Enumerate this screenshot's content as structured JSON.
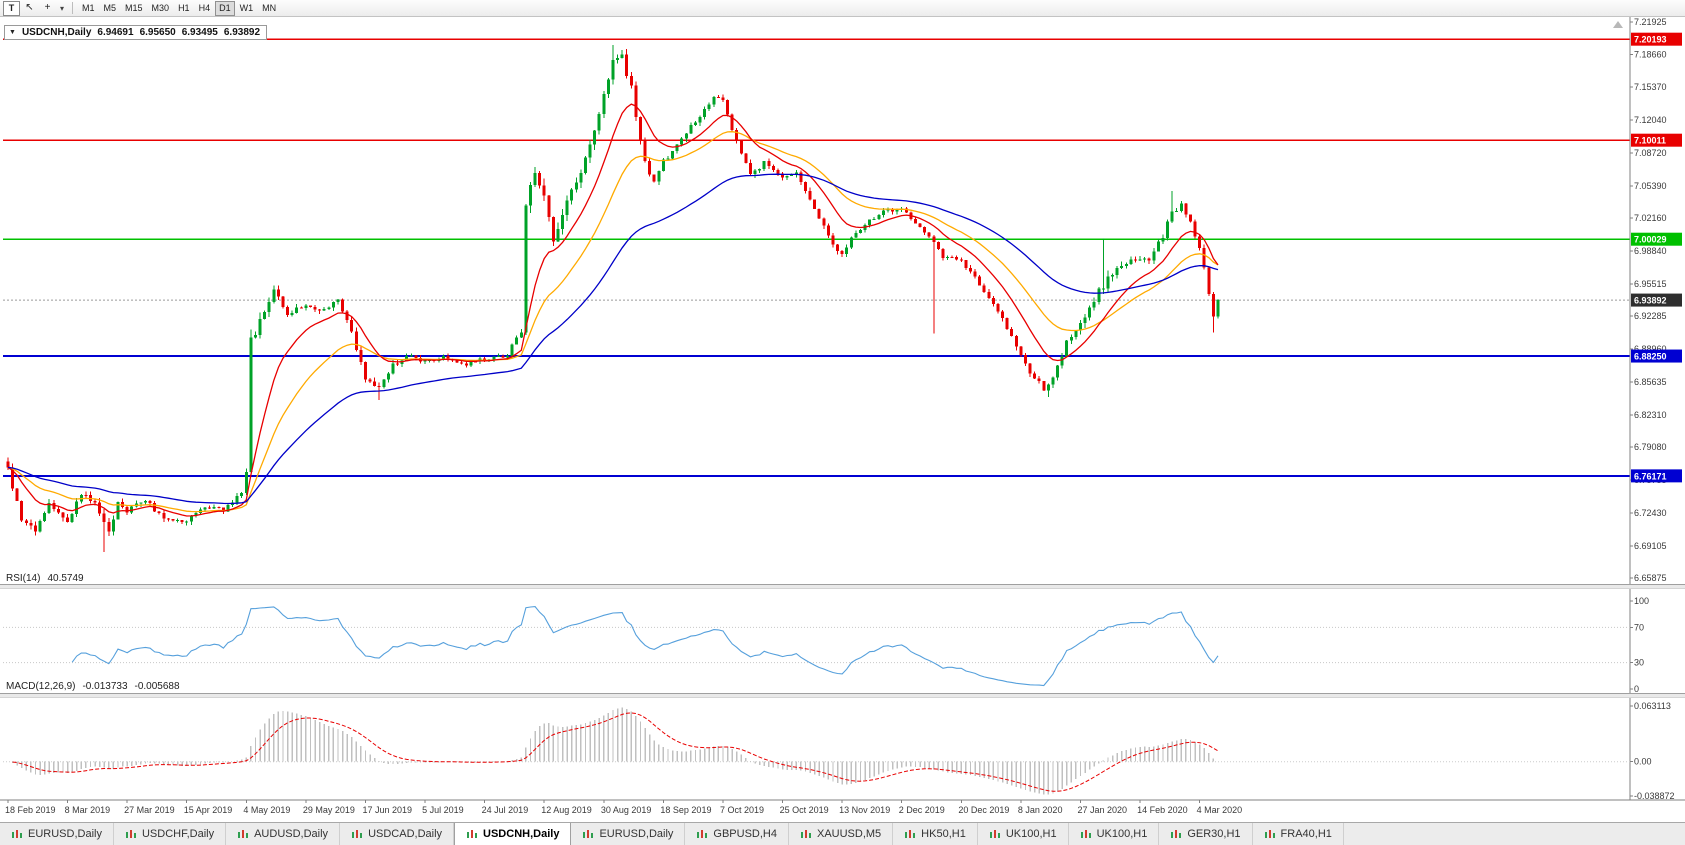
{
  "toolbar": {
    "text_tool_label": "T",
    "cursor_icon": "↖",
    "crosshair_icon": "+",
    "dropdown_icon": "▾",
    "timeframes": [
      "M1",
      "M5",
      "M15",
      "M30",
      "H1",
      "H4",
      "D1",
      "W1",
      "MN"
    ],
    "active_timeframe": "D1"
  },
  "chart": {
    "collapse_icon": "▼",
    "symbol": "USDCNH,Daily",
    "ohlc": {
      "open": "6.94691",
      "high": "6.95650",
      "low": "6.93495",
      "close": "6.93892"
    }
  },
  "chart_data": {
    "type": "candlestick",
    "symbol": "USDCNH",
    "timeframe": "Daily",
    "ylim": [
      6.65875,
      7.21925
    ],
    "y_ticks": [
      "7.21925",
      "7.18660",
      "7.15370",
      "7.12040",
      "7.08720",
      "7.05390",
      "7.02160",
      "6.98840",
      "6.95515",
      "6.92285",
      "6.88960",
      "6.85635",
      "6.82310",
      "6.79080",
      "6.75755",
      "6.72430",
      "6.69105",
      "6.65875"
    ],
    "x_labels": [
      "18 Feb 2019",
      "8 Mar 2019",
      "27 Mar 2019",
      "15 Apr 2019",
      "4 May 2019",
      "29 May 2019",
      "17 Jun 2019",
      "5 Jul 2019",
      "24 Jul 2019",
      "12 Aug 2019",
      "30 Aug 2019",
      "18 Sep 2019",
      "7 Oct 2019",
      "25 Oct 2019",
      "13 Nov 2019",
      "2 Dec 2019",
      "20 Dec 2019",
      "8 Jan 2020",
      "27 Jan 2020",
      "14 Feb 2020",
      "4 Mar 2020"
    ],
    "bars": 265,
    "bars_per_label": 13,
    "last_close": 6.93892,
    "anchors": [
      [
        0,
        6.768,
        0.007
      ],
      [
        3,
        6.716,
        0.008
      ],
      [
        6,
        6.706,
        0.007
      ],
      [
        9,
        6.735,
        0.006
      ],
      [
        13,
        6.712,
        0.007
      ],
      [
        16,
        6.744,
        0.006
      ],
      [
        19,
        6.732,
        0.006
      ],
      [
        22,
        6.703,
        0.008
      ],
      [
        24,
        6.736,
        0.005
      ],
      [
        26,
        6.726,
        0.005
      ],
      [
        30,
        6.737,
        0.005
      ],
      [
        34,
        6.718,
        0.005
      ],
      [
        39,
        6.717,
        0.005
      ],
      [
        43,
        6.731,
        0.004
      ],
      [
        47,
        6.728,
        0.004
      ],
      [
        51,
        6.744,
        0.004
      ],
      [
        52,
        6.765,
        0.006
      ],
      [
        53,
        6.9,
        0.012
      ],
      [
        55,
        6.916,
        0.01
      ],
      [
        58,
        6.947,
        0.008
      ],
      [
        61,
        6.925,
        0.006
      ],
      [
        65,
        6.934,
        0.006
      ],
      [
        69,
        6.929,
        0.005
      ],
      [
        72,
        6.941,
        0.006
      ],
      [
        75,
        6.905,
        0.006
      ],
      [
        78,
        6.862,
        0.007
      ],
      [
        81,
        6.849,
        0.006
      ],
      [
        84,
        6.872,
        0.006
      ],
      [
        88,
        6.884,
        0.005
      ],
      [
        91,
        6.876,
        0.004
      ],
      [
        95,
        6.882,
        0.004
      ],
      [
        99,
        6.874,
        0.004
      ],
      [
        104,
        6.879,
        0.004
      ],
      [
        109,
        6.884,
        0.004
      ],
      [
        112,
        6.908,
        0.006
      ],
      [
        113,
        7.038,
        0.016
      ],
      [
        115,
        7.062,
        0.012
      ],
      [
        117,
        7.046,
        0.012
      ],
      [
        119,
        6.998,
        0.01
      ],
      [
        121,
        7.028,
        0.009
      ],
      [
        124,
        7.058,
        0.008
      ],
      [
        127,
        7.093,
        0.008
      ],
      [
        130,
        7.148,
        0.009
      ],
      [
        132,
        7.178,
        0.008
      ],
      [
        134,
        7.183,
        0.008
      ],
      [
        136,
        7.152,
        0.008
      ],
      [
        139,
        7.078,
        0.009
      ],
      [
        141,
        7.056,
        0.007
      ],
      [
        143,
        7.079,
        0.006
      ],
      [
        146,
        7.094,
        0.006
      ],
      [
        149,
        7.114,
        0.006
      ],
      [
        152,
        7.129,
        0.005
      ],
      [
        154,
        7.146,
        0.005
      ],
      [
        156,
        7.139,
        0.005
      ],
      [
        159,
        7.099,
        0.006
      ],
      [
        162,
        7.066,
        0.006
      ],
      [
        165,
        7.077,
        0.005
      ],
      [
        169,
        7.062,
        0.005
      ],
      [
        172,
        7.069,
        0.004
      ],
      [
        175,
        7.041,
        0.005
      ],
      [
        178,
        7.014,
        0.005
      ],
      [
        180,
        6.996,
        0.006
      ],
      [
        182,
        6.986,
        0.005
      ],
      [
        185,
        7.008,
        0.004
      ],
      [
        188,
        7.019,
        0.004
      ],
      [
        191,
        7.028,
        0.004
      ],
      [
        195,
        7.032,
        0.004
      ],
      [
        198,
        7.016,
        0.004
      ],
      [
        201,
        7.002,
        0.004
      ],
      [
        204,
        6.983,
        0.004
      ],
      [
        208,
        6.978,
        0.004
      ],
      [
        211,
        6.962,
        0.004
      ],
      [
        214,
        6.941,
        0.005
      ],
      [
        217,
        6.921,
        0.005
      ],
      [
        220,
        6.891,
        0.006
      ],
      [
        223,
        6.863,
        0.006
      ],
      [
        226,
        6.851,
        0.006
      ],
      [
        228,
        6.859,
        0.007
      ],
      [
        231,
        6.897,
        0.007
      ],
      [
        234,
        6.917,
        0.007
      ],
      [
        237,
        6.939,
        0.008
      ],
      [
        240,
        6.961,
        0.009
      ],
      [
        243,
        6.972,
        0.007
      ],
      [
        246,
        6.981,
        0.006
      ],
      [
        249,
        6.979,
        0.005
      ],
      [
        252,
        7.004,
        0.006
      ],
      [
        254,
        7.027,
        0.006
      ],
      [
        256,
        7.034,
        0.005
      ],
      [
        258,
        7.017,
        0.005
      ],
      [
        260,
        6.994,
        0.006
      ],
      [
        261,
        6.974,
        0.005
      ],
      [
        262,
        6.947,
        0.005
      ],
      [
        263,
        6.922,
        0.005
      ],
      [
        264,
        6.93892,
        0.004
      ]
    ],
    "spikes": [
      {
        "index": 21,
        "low": 6.685
      },
      {
        "index": 81,
        "low": 6.838
      },
      {
        "index": 132,
        "high": 7.196
      },
      {
        "index": 202,
        "low": 6.905
      },
      {
        "index": 227,
        "low": 6.841
      },
      {
        "index": 239,
        "high": 7.001
      },
      {
        "index": 254,
        "high": 7.049
      },
      {
        "index": 263,
        "low": 6.906
      }
    ],
    "horizontal_lines": [
      {
        "price": 7.20193,
        "label": "7.20193",
        "color": "#e80000"
      },
      {
        "price": 7.10011,
        "label": "7.10011",
        "color": "#e80000"
      },
      {
        "price": 7.00029,
        "label": "7.00029",
        "color": "#00c000"
      },
      {
        "price": 6.8825,
        "label": "6.88250",
        "color": "#0000d2"
      },
      {
        "price": 6.76171,
        "label": "6.76171",
        "color": "#0000d2"
      }
    ],
    "current_price": {
      "value": 6.93892,
      "label": "6.93892",
      "tag_bg": "#2e2e2e"
    },
    "moving_averages": [
      {
        "period": 26,
        "color": "#ffaa00"
      },
      {
        "period": 12,
        "color": "#e80000"
      },
      {
        "period": 56,
        "color": "#0000c8"
      }
    ],
    "candle_colors": {
      "up": "#00a228",
      "down": "#e80000"
    }
  },
  "rsi": {
    "name": "RSI(14)",
    "value": "40.5749",
    "period": 14,
    "line_color": "#56a0dc",
    "ticks": [
      {
        "v": 100,
        "label": "100"
      },
      {
        "v": 70,
        "label": "70"
      },
      {
        "v": 30,
        "label": "30"
      },
      {
        "v": 0,
        "label": "0"
      }
    ]
  },
  "macd": {
    "name": "MACD(12,26,9)",
    "value_main": "-0.013733",
    "value_signal": "-0.005688",
    "fast": 12,
    "slow": 26,
    "signal": 9,
    "scale_max": 0.063113,
    "scale_min": -0.038872,
    "hist_color": "#c0c0c0",
    "signal_color": "#e80000",
    "ticks": [
      {
        "v": 0.063113,
        "label": "0.063113"
      },
      {
        "v": 0,
        "label": "0.00"
      },
      {
        "v": -0.038872,
        "label": "-0.038872"
      }
    ]
  },
  "tabs": {
    "active_index": 4,
    "items": [
      {
        "label": "EURUSD,Daily"
      },
      {
        "label": "USDCHF,Daily"
      },
      {
        "label": "AUDUSD,Daily"
      },
      {
        "label": "USDCAD,Daily"
      },
      {
        "label": "USDCNH,Daily"
      },
      {
        "label": "EURUSD,Daily"
      },
      {
        "label": "GBPUSD,H4"
      },
      {
        "label": "XAUUSD,M5"
      },
      {
        "label": "HK50,H1"
      },
      {
        "label": "UK100,H1"
      },
      {
        "label": "UK100,H1"
      },
      {
        "label": "GER30,H1"
      },
      {
        "label": "FRA40,H1"
      }
    ]
  }
}
